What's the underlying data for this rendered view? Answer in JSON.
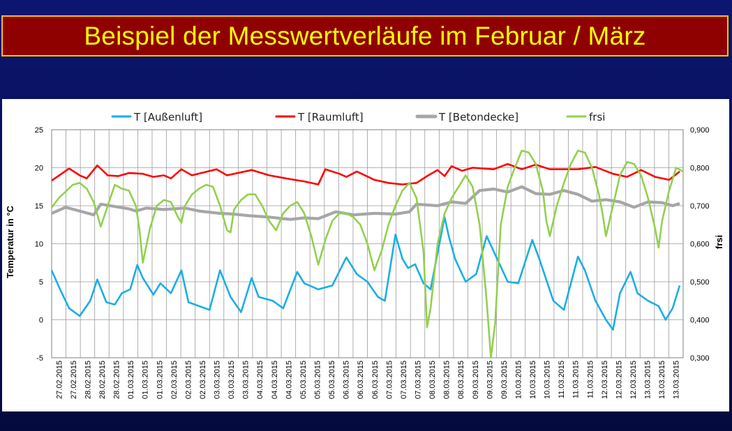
{
  "slide": {
    "title": "Beispiel der Messwertverläufe im Februar / März"
  },
  "colors": {
    "aussenluft": "#1aaee6",
    "raumluft": "#ff0000",
    "betondecke": "#a6a6a6",
    "frsi": "#92d050"
  },
  "chart_data": {
    "type": "line",
    "ylabel": "Temperatur in °C",
    "y2label": "frsi",
    "ylim": [
      -5,
      25
    ],
    "y_ticks": [
      "-5",
      "0",
      "5",
      "10",
      "15",
      "20",
      "25"
    ],
    "y2lim": [
      0.3,
      0.9
    ],
    "y2_ticks": [
      "0,300",
      "0,400",
      "0,500",
      "0,600",
      "0,700",
      "0,800",
      "0,900"
    ],
    "grid": true,
    "legend_position": "top",
    "x_dates": [
      "27.02.2015",
      "27.02.2015",
      "28.02.2015",
      "28.02.2015",
      "28.02.2015",
      "01.03.2015",
      "01.03.2015",
      "01.03.2015",
      "02.03.2015",
      "02.03.2015",
      "02.03.2015",
      "03.03.2015",
      "03.03.2015",
      "03.03.2015",
      "04.03.2015",
      "04.03.2015",
      "04.03.2015",
      "05.03.2015",
      "05.03.2015",
      "05.03.2015",
      "06.03.2015",
      "06.03.2015",
      "06.03.2015",
      "07.03.2015",
      "07.03.2015",
      "07.03.2015",
      "08.03.2015",
      "08.03.2015",
      "08.03.2015",
      "09.03.2015",
      "09.03.2015",
      "09.03.2015",
      "10.03.2015",
      "10.03.2015",
      "10.03.2015",
      "11.03.2015",
      "11.03.2015",
      "11.03.2015",
      "12.03.2015",
      "12.03.2015",
      "12.03.2015",
      "13.03.2015",
      "13.03.2015",
      "13.03.2015"
    ],
    "series": [
      {
        "name": "T [Außenluft]",
        "axis": "left",
        "values": [
          [
            0,
            6.5
          ],
          [
            1.2,
            4.0
          ],
          [
            2.5,
            1.5
          ],
          [
            4.0,
            0.5
          ],
          [
            5.5,
            2.5
          ],
          [
            6.5,
            5.3
          ],
          [
            7.8,
            2.3
          ],
          [
            9.0,
            2.0
          ],
          [
            10.0,
            3.5
          ],
          [
            11.2,
            4.0
          ],
          [
            12.2,
            7.2
          ],
          [
            13.0,
            5.5
          ],
          [
            14.5,
            3.3
          ],
          [
            15.5,
            4.8
          ],
          [
            17.0,
            3.5
          ],
          [
            18.5,
            6.5
          ],
          [
            19.5,
            2.3
          ],
          [
            21.0,
            1.8
          ],
          [
            22.5,
            1.3
          ],
          [
            24.0,
            6.5
          ],
          [
            25.5,
            3.0
          ],
          [
            27.0,
            1.0
          ],
          [
            28.5,
            5.5
          ],
          [
            29.5,
            3.0
          ],
          [
            31.5,
            2.5
          ],
          [
            33.0,
            1.5
          ],
          [
            35.0,
            6.3
          ],
          [
            36.0,
            4.8
          ],
          [
            38.0,
            4.0
          ],
          [
            40.0,
            4.5
          ],
          [
            42.0,
            8.2
          ],
          [
            43.5,
            6.0
          ],
          [
            45.0,
            5.0
          ],
          [
            46.5,
            3.0
          ],
          [
            47.5,
            2.5
          ],
          [
            49.0,
            11.2
          ],
          [
            50.0,
            8.0
          ],
          [
            50.8,
            6.8
          ],
          [
            51.8,
            7.3
          ],
          [
            53.0,
            4.8
          ],
          [
            54.0,
            4.0
          ],
          [
            56.0,
            13.5
          ],
          [
            56.6,
            11.0
          ],
          [
            57.5,
            8.0
          ],
          [
            59.0,
            5.0
          ],
          [
            60.5,
            6.0
          ],
          [
            62.0,
            11.0
          ],
          [
            63.0,
            9.0
          ],
          [
            65.0,
            5.0
          ],
          [
            66.5,
            4.8
          ],
          [
            68.5,
            10.5
          ],
          [
            69.5,
            8.0
          ],
          [
            71.5,
            2.5
          ],
          [
            73.0,
            1.3
          ],
          [
            75.0,
            8.3
          ],
          [
            76.0,
            6.5
          ],
          [
            77.5,
            2.5
          ],
          [
            79.0,
            0.0
          ],
          [
            80.0,
            -1.3
          ],
          [
            81.0,
            3.5
          ],
          [
            82.5,
            6.3
          ],
          [
            83.5,
            3.5
          ],
          [
            85.0,
            2.5
          ],
          [
            86.5,
            1.8
          ],
          [
            87.5,
            0.0
          ],
          [
            88.5,
            1.5
          ],
          [
            89.5,
            4.5
          ]
        ]
      },
      {
        "name": "T [Raumluft]",
        "axis": "left",
        "values": [
          [
            0,
            18.3
          ],
          [
            2.5,
            19.9
          ],
          [
            4.0,
            19.0
          ],
          [
            5.0,
            18.6
          ],
          [
            6.5,
            20.3
          ],
          [
            8.0,
            19.0
          ],
          [
            9.5,
            18.9
          ],
          [
            11.0,
            19.3
          ],
          [
            13.0,
            19.2
          ],
          [
            14.5,
            18.8
          ],
          [
            16.0,
            19.0
          ],
          [
            17.0,
            18.6
          ],
          [
            18.5,
            19.8
          ],
          [
            20.0,
            19.0
          ],
          [
            23.5,
            19.8
          ],
          [
            25.0,
            19.0
          ],
          [
            28.5,
            19.7
          ],
          [
            31.0,
            19.0
          ],
          [
            34.0,
            18.5
          ],
          [
            36.0,
            18.2
          ],
          [
            38.0,
            17.8
          ],
          [
            39.0,
            19.8
          ],
          [
            41.0,
            19.2
          ],
          [
            42.0,
            18.8
          ],
          [
            43.5,
            19.5
          ],
          [
            46.0,
            18.4
          ],
          [
            48.0,
            18.0
          ],
          [
            50.0,
            17.8
          ],
          [
            52.0,
            18.0
          ],
          [
            53.5,
            18.9
          ],
          [
            55.0,
            19.7
          ],
          [
            56.0,
            18.9
          ],
          [
            57.0,
            20.2
          ],
          [
            58.5,
            19.6
          ],
          [
            60.0,
            20.0
          ],
          [
            63.0,
            19.8
          ],
          [
            65.0,
            20.5
          ],
          [
            67.0,
            19.8
          ],
          [
            69.0,
            20.4
          ],
          [
            71.0,
            19.8
          ],
          [
            73.0,
            19.8
          ],
          [
            75.0,
            19.8
          ],
          [
            77.5,
            20.1
          ],
          [
            80.0,
            19.2
          ],
          [
            82.0,
            18.8
          ],
          [
            84.0,
            19.7
          ],
          [
            86.0,
            18.8
          ],
          [
            88.0,
            18.4
          ],
          [
            89.5,
            19.5
          ]
        ]
      },
      {
        "name": "T [Betondecke]",
        "axis": "left",
        "values": [
          [
            0,
            14.0
          ],
          [
            2.0,
            14.8
          ],
          [
            4.0,
            14.3
          ],
          [
            6.0,
            13.8
          ],
          [
            7.0,
            15.2
          ],
          [
            9.0,
            14.9
          ],
          [
            11.0,
            14.6
          ],
          [
            12.0,
            14.3
          ],
          [
            13.5,
            14.7
          ],
          [
            16.0,
            14.5
          ],
          [
            19.0,
            14.7
          ],
          [
            21.0,
            14.3
          ],
          [
            24.0,
            14.0
          ],
          [
            26.0,
            13.9
          ],
          [
            28.0,
            13.7
          ],
          [
            31.0,
            13.5
          ],
          [
            34.0,
            13.2
          ],
          [
            36.0,
            13.4
          ],
          [
            38.0,
            13.3
          ],
          [
            40.5,
            14.2
          ],
          [
            43.0,
            13.8
          ],
          [
            46.0,
            14.0
          ],
          [
            49.0,
            13.9
          ],
          [
            51.0,
            14.2
          ],
          [
            52.0,
            15.2
          ],
          [
            55.0,
            15.0
          ],
          [
            57.0,
            15.5
          ],
          [
            59.0,
            15.3
          ],
          [
            61.0,
            17.0
          ],
          [
            63.0,
            17.2
          ],
          [
            65.0,
            16.8
          ],
          [
            67.0,
            17.5
          ],
          [
            69.0,
            16.6
          ],
          [
            71.0,
            16.5
          ],
          [
            73.0,
            17.0
          ],
          [
            75.0,
            16.5
          ],
          [
            77.0,
            15.6
          ],
          [
            79.0,
            15.8
          ],
          [
            81.0,
            15.5
          ],
          [
            83.0,
            14.8
          ],
          [
            85.0,
            15.5
          ],
          [
            87.0,
            15.4
          ],
          [
            88.5,
            15.0
          ],
          [
            89.5,
            15.3
          ]
        ]
      },
      {
        "name": "frsi",
        "axis": "right",
        "values": [
          [
            0,
            0.695
          ],
          [
            1.0,
            0.72
          ],
          [
            2.0,
            0.737
          ],
          [
            3.0,
            0.755
          ],
          [
            4.0,
            0.76
          ],
          [
            5.0,
            0.745
          ],
          [
            6.0,
            0.71
          ],
          [
            7.0,
            0.645
          ],
          [
            8.0,
            0.7
          ],
          [
            9.0,
            0.755
          ],
          [
            10.0,
            0.745
          ],
          [
            11.0,
            0.74
          ],
          [
            12.0,
            0.7
          ],
          [
            12.5,
            0.64
          ],
          [
            13.0,
            0.55
          ],
          [
            14.0,
            0.64
          ],
          [
            15.0,
            0.7
          ],
          [
            16.0,
            0.715
          ],
          [
            17.0,
            0.71
          ],
          [
            18.0,
            0.67
          ],
          [
            18.5,
            0.655
          ],
          [
            19.0,
            0.7
          ],
          [
            20.0,
            0.73
          ],
          [
            21.0,
            0.745
          ],
          [
            22.0,
            0.755
          ],
          [
            23.0,
            0.75
          ],
          [
            24.0,
            0.7
          ],
          [
            25.0,
            0.635
          ],
          [
            25.5,
            0.63
          ],
          [
            26.0,
            0.69
          ],
          [
            27.0,
            0.715
          ],
          [
            28.0,
            0.73
          ],
          [
            29.0,
            0.73
          ],
          [
            30.0,
            0.7
          ],
          [
            31.0,
            0.66
          ],
          [
            32.0,
            0.635
          ],
          [
            33.0,
            0.68
          ],
          [
            34.0,
            0.7
          ],
          [
            35.0,
            0.71
          ],
          [
            36.0,
            0.68
          ],
          [
            37.0,
            0.62
          ],
          [
            38.0,
            0.545
          ],
          [
            39.0,
            0.61
          ],
          [
            40.0,
            0.66
          ],
          [
            41.0,
            0.68
          ],
          [
            42.0,
            0.68
          ],
          [
            43.0,
            0.67
          ],
          [
            44.0,
            0.65
          ],
          [
            45.0,
            0.6
          ],
          [
            46.0,
            0.53
          ],
          [
            47.0,
            0.58
          ],
          [
            48.0,
            0.65
          ],
          [
            49.0,
            0.7
          ],
          [
            50.0,
            0.74
          ],
          [
            51.0,
            0.76
          ],
          [
            52.0,
            0.72
          ],
          [
            53.0,
            0.58
          ],
          [
            53.5,
            0.38
          ],
          [
            54.0,
            0.43
          ],
          [
            55.0,
            0.6
          ],
          [
            56.0,
            0.68
          ],
          [
            57.0,
            0.72
          ],
          [
            58.0,
            0.75
          ],
          [
            59.0,
            0.78
          ],
          [
            60.0,
            0.75
          ],
          [
            61.0,
            0.65
          ],
          [
            62.0,
            0.45
          ],
          [
            62.6,
            0.3
          ],
          [
            63.2,
            0.39
          ],
          [
            64.0,
            0.65
          ],
          [
            65.0,
            0.75
          ],
          [
            66.0,
            0.8
          ],
          [
            67.0,
            0.845
          ],
          [
            68.0,
            0.84
          ],
          [
            69.0,
            0.81
          ],
          [
            70.0,
            0.74
          ],
          [
            70.5,
            0.66
          ],
          [
            71.0,
            0.62
          ],
          [
            72.0,
            0.7
          ],
          [
            73.0,
            0.76
          ],
          [
            74.0,
            0.81
          ],
          [
            75.0,
            0.845
          ],
          [
            76.0,
            0.84
          ],
          [
            77.0,
            0.8
          ],
          [
            78.0,
            0.73
          ],
          [
            78.5,
            0.68
          ],
          [
            79.0,
            0.62
          ],
          [
            80.0,
            0.7
          ],
          [
            81.0,
            0.78
          ],
          [
            82.0,
            0.815
          ],
          [
            83.0,
            0.81
          ],
          [
            84.0,
            0.78
          ],
          [
            85.0,
            0.72
          ],
          [
            86.0,
            0.64
          ],
          [
            86.5,
            0.59
          ],
          [
            87.0,
            0.66
          ],
          [
            88.0,
            0.74
          ],
          [
            89.0,
            0.8
          ],
          [
            90.0,
            0.79
          ]
        ]
      }
    ]
  }
}
